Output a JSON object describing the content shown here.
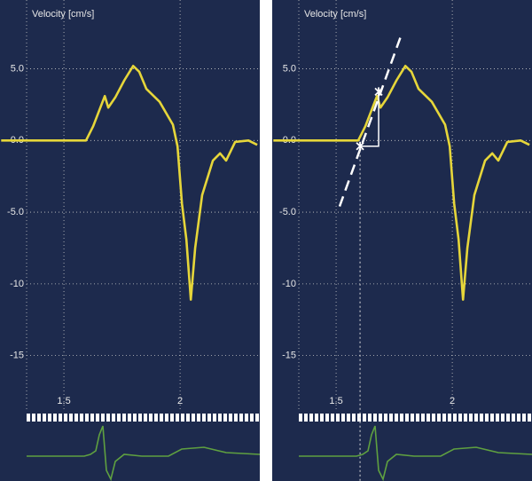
{
  "chart_data": [
    {
      "type": "line",
      "title": "Velocity [cm/s]",
      "color": "#e6d63a",
      "x": [
        1.23,
        1.595,
        1.626,
        1.676,
        1.691,
        1.721,
        1.76,
        1.798,
        1.824,
        1.855,
        1.912,
        1.969,
        1.989,
        2.008,
        2.027,
        2.046,
        2.065,
        2.095,
        2.141,
        2.172,
        2.198,
        2.237,
        2.294,
        2.332
      ],
      "values": [
        0,
        0,
        1.0,
        3.1,
        2.3,
        3.0,
        4.2,
        5.2,
        4.8,
        3.6,
        2.7,
        1.1,
        -0.4,
        -4.4,
        -6.9,
        -11.1,
        -7.5,
        -3.8,
        -1.4,
        -0.9,
        -1.4,
        -0.1,
        0,
        -0.3
      ],
      "xlim": [
        1.225,
        2.343
      ],
      "ylim": [
        -18.8,
        9.8
      ],
      "xticks": [
        1.5,
        2.0
      ],
      "yticks": [
        {
          "value": 5,
          "label": "5.0"
        },
        {
          "value": 0,
          "label": "0.0"
        },
        {
          "value": -5,
          "label": "-5.0"
        },
        -10,
        -15
      ],
      "grid": true
    },
    {
      "type": "line",
      "title": "Velocity [cm/s]",
      "color": "#e6d63a",
      "x": [
        1.23,
        1.595,
        1.626,
        1.676,
        1.691,
        1.721,
        1.76,
        1.798,
        1.824,
        1.855,
        1.912,
        1.969,
        1.989,
        2.008,
        2.027,
        2.046,
        2.065,
        2.095,
        2.141,
        2.172,
        2.198,
        2.237,
        2.294,
        2.332
      ],
      "values": [
        0,
        0,
        1.0,
        3.1,
        2.3,
        3.0,
        4.2,
        5.2,
        4.8,
        3.6,
        2.7,
        1.1,
        -0.4,
        -4.4,
        -6.9,
        -11.1,
        -7.5,
        -3.8,
        -1.4,
        -0.9,
        -1.4,
        -0.1,
        0,
        -0.3
      ],
      "xlim": [
        1.225,
        2.343
      ],
      "ylim": [
        -18.8,
        9.8
      ],
      "xticks": [
        1.5,
        2.0
      ],
      "yticks": [
        {
          "value": 5,
          "label": "5.0"
        },
        {
          "value": 0,
          "label": "0.0"
        },
        {
          "value": -5,
          "label": "-5.0"
        },
        -10,
        -15
      ],
      "grid": true,
      "tangent": {
        "x": [
          1.515,
          1.779
        ],
        "values": [
          -4.6,
          7.3
        ]
      },
      "markers": {
        "x": [
          1.603,
          1.683
        ],
        "values": [
          -0.4,
          3.4
        ]
      }
    }
  ]
}
